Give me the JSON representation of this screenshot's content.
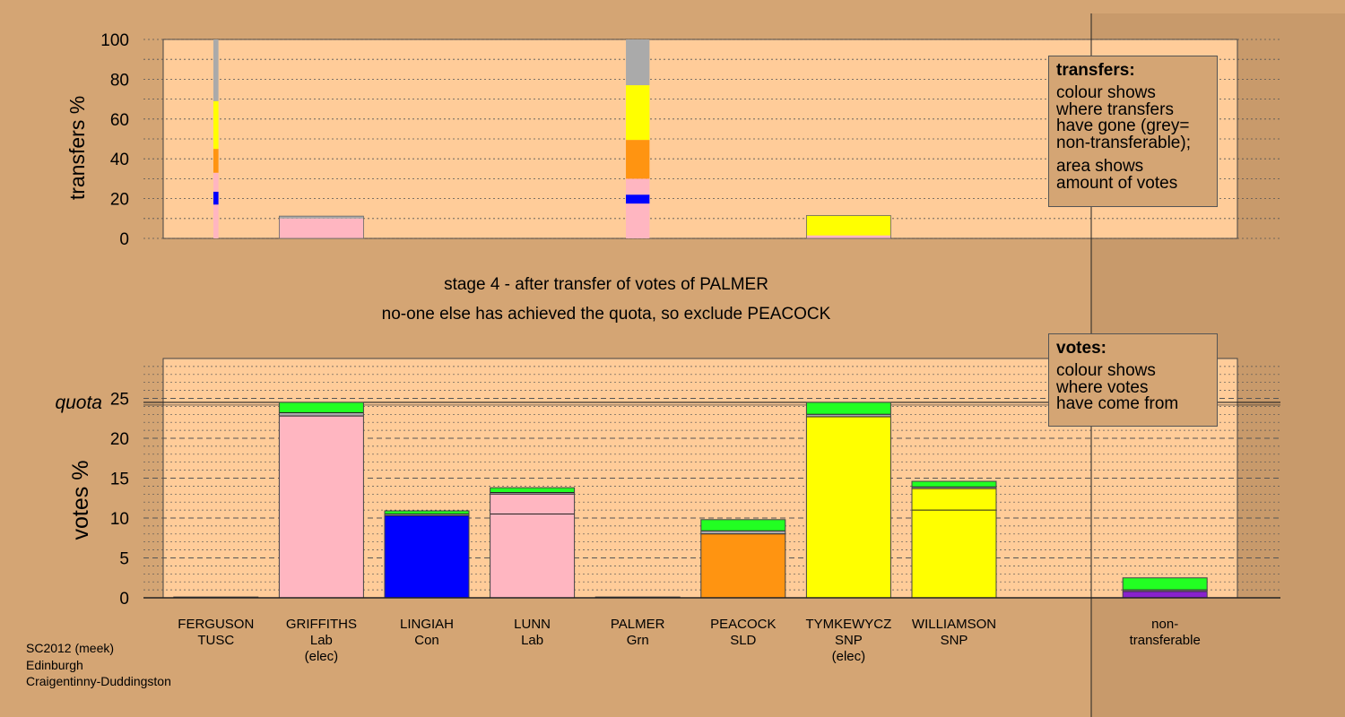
{
  "colors": {
    "background": "#d4a574",
    "plot_background": "#ffcc99",
    "pink": "#ffb6c1",
    "blue": "#0000ff",
    "orange": "#ff9411",
    "yellow": "#ffff00",
    "green": "#22ff22",
    "grey": "#aaaaaa",
    "purple": "#8822cc"
  },
  "caption": {
    "line1": "stage 4 - after transfer of votes of PALMER",
    "line2": "no-one else has achieved the quota, so exclude PEACOCK"
  },
  "legend_transfers": {
    "title": "transfers:",
    "lines1": [
      "colour shows",
      "where transfers",
      "have gone (grey=",
      "non-transferable);"
    ],
    "lines2": [
      "area shows",
      "amount of votes"
    ]
  },
  "legend_votes": {
    "title": "votes:",
    "lines": [
      "colour shows",
      "where votes",
      "have come from"
    ]
  },
  "footer": [
    "SC2012 (meek)",
    "Edinburgh",
    "Craigentinny-Duddingston"
  ],
  "chart_data": [
    {
      "type": "bar",
      "ylabel": "transfers %",
      "ylim": [
        0,
        100
      ],
      "yticks": [
        0,
        20,
        40,
        60,
        80,
        100
      ],
      "bars": [
        {
          "slot": "FERGUSON",
          "width_fraction": 0.06,
          "segments": [
            {
              "color": "pink",
              "value": 17
            },
            {
              "color": "blue",
              "value": 6.5
            },
            {
              "color": "pink",
              "value": 9.5
            },
            {
              "color": "orange",
              "value": 12
            },
            {
              "color": "yellow",
              "value": 24
            },
            {
              "color": "grey",
              "value": 31
            }
          ]
        },
        {
          "slot": "GRIFFITHS",
          "width_fraction": 1.0,
          "segments": [
            {
              "color": "pink",
              "value": 10
            },
            {
              "color": "grey",
              "value": 1.2
            }
          ]
        },
        {
          "slot": "PALMER",
          "width_fraction": 0.28,
          "segments": [
            {
              "color": "pink",
              "value": 17.5
            },
            {
              "color": "blue",
              "value": 4.5
            },
            {
              "color": "pink",
              "value": 8
            },
            {
              "color": "orange",
              "value": 19.5
            },
            {
              "color": "yellow",
              "value": 27.5
            },
            {
              "color": "grey",
              "value": 23
            }
          ]
        },
        {
          "slot": "TYMKEWYCZ",
          "width_fraction": 1.0,
          "segments": [
            {
              "color": "pink",
              "value": 1.5
            },
            {
              "color": "yellow",
              "value": 10
            }
          ]
        }
      ]
    },
    {
      "type": "bar",
      "ylabel": "votes %",
      "ylim": [
        0,
        30
      ],
      "yticks": [
        0,
        5,
        10,
        15,
        20,
        25
      ],
      "quota": 24.5,
      "quota_label": "quota",
      "categories": [
        {
          "name": "FERGUSON",
          "party": "TUSC",
          "note": ""
        },
        {
          "name": "GRIFFITHS",
          "party": "Lab",
          "note": "(elec)"
        },
        {
          "name": "LINGIAH",
          "party": "Con",
          "note": ""
        },
        {
          "name": "LUNN",
          "party": "Lab",
          "note": ""
        },
        {
          "name": "PALMER",
          "party": "Grn",
          "note": ""
        },
        {
          "name": "PEACOCK",
          "party": "SLD",
          "note": ""
        },
        {
          "name": "TYMKEWYCZ",
          "party": "SNP",
          "note": "(elec)"
        },
        {
          "name": "WILLIAMSON",
          "party": "SNP",
          "note": ""
        },
        {
          "name": "",
          "party": "",
          "note": ""
        },
        {
          "name": "non-",
          "party": "transferable",
          "note": ""
        }
      ],
      "stacks": [
        [
          {
            "color": "grey",
            "value": 0.1
          }
        ],
        [
          {
            "color": "pink",
            "value": 22.8
          },
          {
            "color": "grey",
            "value": 0.4
          },
          {
            "color": "green",
            "value": 1.3
          }
        ],
        [
          {
            "color": "blue",
            "value": 10.3
          },
          {
            "color": "grey",
            "value": 0.2
          },
          {
            "color": "green",
            "value": 0.4
          }
        ],
        [
          {
            "color": "pink",
            "value": 10.5
          },
          {
            "color": "pink",
            "value": 2.5
          },
          {
            "color": "grey",
            "value": 0.2
          },
          {
            "color": "green",
            "value": 0.6
          }
        ],
        [
          {
            "color": "grey",
            "value": 0.1
          }
        ],
        [
          {
            "color": "orange",
            "value": 8.0
          },
          {
            "color": "grey",
            "value": 0.4
          },
          {
            "color": "green",
            "value": 1.4
          }
        ],
        [
          {
            "color": "yellow",
            "value": 22.7
          },
          {
            "color": "grey",
            "value": 0.3
          },
          {
            "color": "green",
            "value": 1.5
          }
        ],
        [
          {
            "color": "yellow",
            "value": 11.0
          },
          {
            "color": "yellow",
            "value": 2.7
          },
          {
            "color": "grey",
            "value": 0.2
          },
          {
            "color": "green",
            "value": 0.7
          }
        ],
        [],
        [
          {
            "color": "purple",
            "value": 0.8
          },
          {
            "color": "grey",
            "value": 0.2
          },
          {
            "color": "green",
            "value": 1.5
          }
        ]
      ]
    }
  ]
}
